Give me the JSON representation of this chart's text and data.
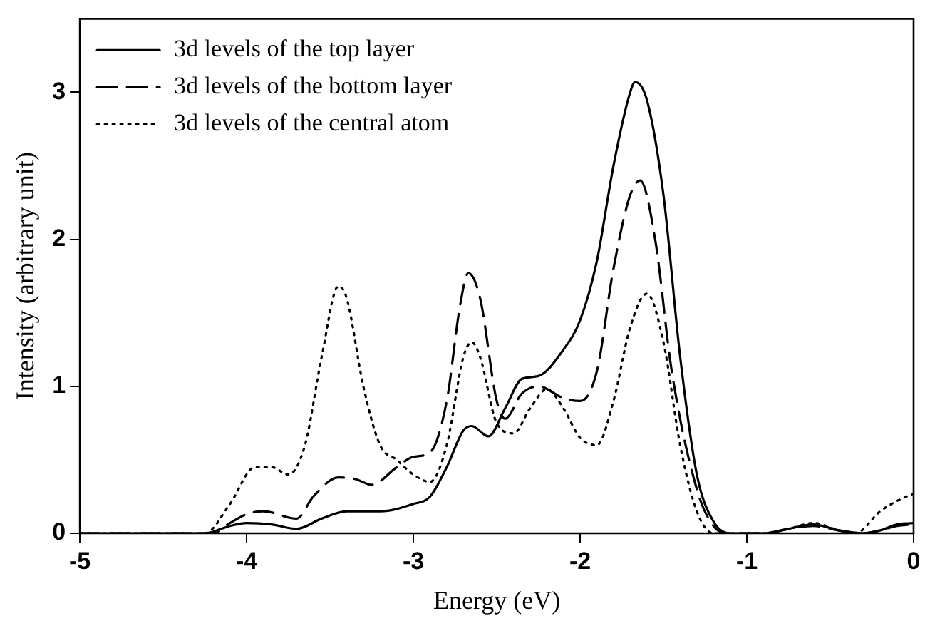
{
  "chart_data": {
    "type": "line",
    "xlabel": "Energy (eV)",
    "ylabel": "Intensity (arbitrary unit)",
    "xlim": [
      -5,
      0
    ],
    "xticks": [
      -5,
      -4,
      -3,
      -2,
      -1,
      0
    ],
    "ylim": [
      0,
      3.5
    ],
    "yticks": [
      0,
      1,
      2,
      3
    ],
    "grid": false,
    "legend": "top left",
    "marker": "none",
    "series": [
      {
        "name": "3d levels of the top layer",
        "color": "#000000",
        "line_style": "solid",
        "x": [
          -5,
          -4.5,
          -4.25,
          -4.1,
          -4,
          -3.85,
          -3.7,
          -3.55,
          -3.4,
          -3.2,
          -3,
          -2.9,
          -2.8,
          -2.7,
          -2.65,
          -2.55,
          -2.45,
          -2.35,
          -2.25,
          -2.1,
          -2,
          -1.9,
          -1.8,
          -1.7,
          -1.67,
          -1.6,
          -1.5,
          -1.4,
          -1.3,
          -1.2,
          -1.1,
          -0.9,
          -0.75,
          -0.6,
          -0.45,
          -0.3,
          -0.2,
          -0.1,
          0
        ],
        "values": [
          0,
          0,
          0,
          0.05,
          0.07,
          0.06,
          0.03,
          0.1,
          0.15,
          0.15,
          0.2,
          0.25,
          0.45,
          0.7,
          0.73,
          0.66,
          0.85,
          1.05,
          1.07,
          1.25,
          1.45,
          1.85,
          2.5,
          3,
          3.07,
          2.95,
          2.3,
          1.2,
          0.4,
          0.08,
          0,
          0,
          0.03,
          0.06,
          0.02,
          0,
          0.02,
          0.06,
          0.07
        ]
      },
      {
        "name": "3d levels of the bottom layer",
        "color": "#000000",
        "line_style": "dashed",
        "x": [
          -5,
          -4.5,
          -4.2,
          -4.1,
          -4,
          -3.9,
          -3.7,
          -3.6,
          -3.45,
          -3.35,
          -3.25,
          -3.1,
          -3,
          -2.9,
          -2.8,
          -2.72,
          -2.67,
          -2.6,
          -2.5,
          -2.45,
          -2.35,
          -2.25,
          -2.1,
          -2,
          -1.9,
          -1.8,
          -1.7,
          -1.64,
          -1.55,
          -1.45,
          -1.3,
          -1.2,
          -1.1,
          -0.9,
          -0.75,
          -0.6,
          -0.45,
          -0.3,
          -0.2,
          -0.1,
          0
        ],
        "values": [
          0,
          0,
          0,
          0.07,
          0.13,
          0.15,
          0.1,
          0.25,
          0.38,
          0.37,
          0.33,
          0.45,
          0.52,
          0.55,
          0.9,
          1.55,
          1.77,
          1.6,
          0.9,
          0.78,
          0.95,
          1,
          0.92,
          0.9,
          1.1,
          1.8,
          2.3,
          2.4,
          2,
          1.1,
          0.3,
          0.05,
          0,
          0,
          0.03,
          0.05,
          0.02,
          0,
          0.02,
          0.05,
          0.06
        ]
      },
      {
        "name": "3d levels of the central atom",
        "color": "#000000",
        "line_style": "dotted",
        "x": [
          -5,
          -4.5,
          -4.25,
          -4.1,
          -3.95,
          -3.85,
          -3.75,
          -3.65,
          -3.55,
          -3.45,
          -3.4,
          -3.3,
          -3.2,
          -3.1,
          -3,
          -2.9,
          -2.8,
          -2.7,
          -2.65,
          -2.6,
          -2.5,
          -2.4,
          -2.3,
          -2.2,
          -2.1,
          -2,
          -1.9,
          -1.8,
          -1.7,
          -1.6,
          -1.5,
          -1.4,
          -1.3,
          -1.2,
          -0.9,
          -0.75,
          -0.6,
          -0.45,
          -0.35,
          -0.2,
          -0.1,
          0
        ],
        "values": [
          0,
          0,
          0,
          0.2,
          0.45,
          0.45,
          0.4,
          0.6,
          1.2,
          1.68,
          1.6,
          1,
          0.6,
          0.5,
          0.4,
          0.35,
          0.6,
          1.2,
          1.3,
          1.2,
          0.75,
          0.68,
          0.85,
          0.98,
          0.85,
          0.65,
          0.6,
          0.9,
          1.4,
          1.63,
          1.3,
          0.6,
          0.15,
          0,
          0,
          0.03,
          0.07,
          0.02,
          0,
          0.15,
          0.22,
          0.27
        ]
      }
    ]
  }
}
